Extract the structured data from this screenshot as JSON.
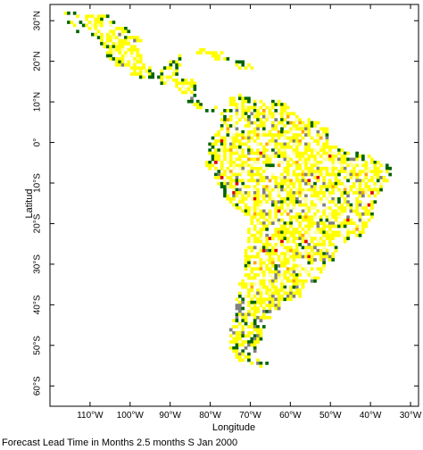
{
  "chart_data": {
    "type": "heatmap",
    "xlabel": "Longitude",
    "ylabel": "Latitud",
    "caption": "Forecast Lead Time in Months 2.5 months S Jan 2000",
    "xlim": [
      -120,
      -28
    ],
    "ylim": [
      -65,
      34
    ],
    "x_ticks": [
      {
        "value": -110,
        "label": "110°W"
      },
      {
        "value": -100,
        "label": "100°W"
      },
      {
        "value": -90,
        "label": "90°W"
      },
      {
        "value": -80,
        "label": "80°W"
      },
      {
        "value": -70,
        "label": "70°W"
      },
      {
        "value": -60,
        "label": "60°W"
      },
      {
        "value": -50,
        "label": "50°W"
      },
      {
        "value": -40,
        "label": "40°W"
      },
      {
        "value": -30,
        "label": "30°W"
      }
    ],
    "y_ticks": [
      {
        "value": 30,
        "label": "30°N"
      },
      {
        "value": 20,
        "label": "20°N"
      },
      {
        "value": 10,
        "label": "10°N"
      },
      {
        "value": 0,
        "label": "0°"
      },
      {
        "value": -10,
        "label": "10°S"
      },
      {
        "value": -20,
        "label": "20°S"
      },
      {
        "value": -30,
        "label": "30°S"
      },
      {
        "value": -40,
        "label": "40°S"
      },
      {
        "value": -50,
        "label": "50°S"
      },
      {
        "value": -60,
        "label": "60°S"
      }
    ],
    "grid": false,
    "colors": {
      "yellow": "#ffff00",
      "pale_yellow": "#ffffa0",
      "green": "#006400",
      "gray": "#808080",
      "orange": "#ffa500",
      "red": "#e00000",
      "frame": "#000000"
    },
    "mark_style": "pixelated grid cells over land (Central & South America)"
  }
}
